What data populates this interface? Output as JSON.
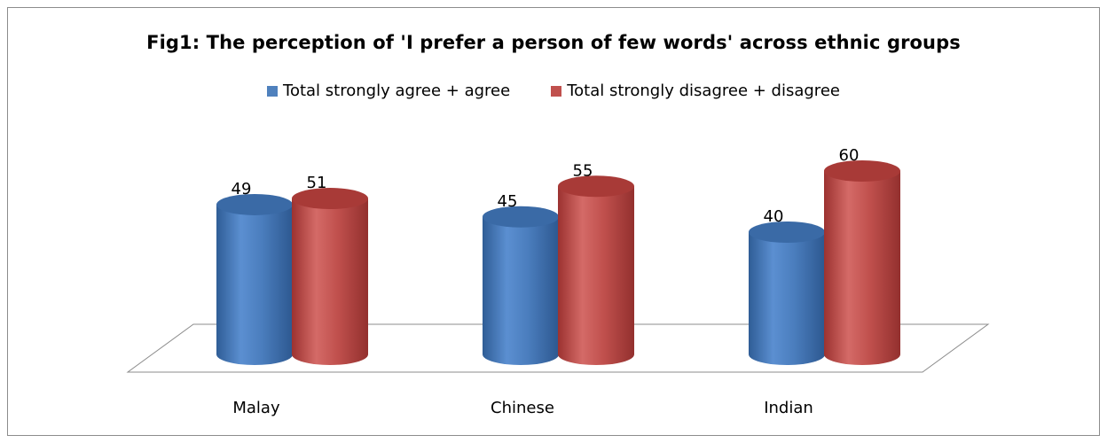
{
  "chart_data": {
    "type": "bar",
    "style": "3d-cylinder",
    "title": "Fig1: The perception of 'I prefer a person of few words' across ethnic groups",
    "categories": [
      "Malay",
      "Chinese",
      "Indian"
    ],
    "series": [
      {
        "name": "Total  strongly agree + agree",
        "values": [
          49,
          45,
          40
        ],
        "color": "#4f81bd"
      },
      {
        "name": "Total  strongly disagree + disagree",
        "values": [
          51,
          55,
          60
        ],
        "color": "#c0504d"
      }
    ],
    "data_labels": true,
    "legend_position": "top",
    "grid": false,
    "ylim": [
      0,
      75
    ]
  }
}
